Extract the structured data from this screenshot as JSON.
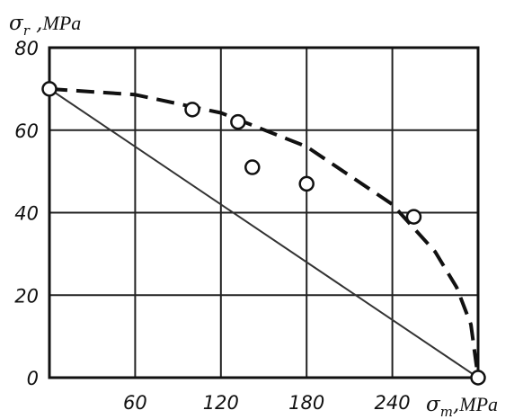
{
  "chart_data": {
    "type": "scatter",
    "title": "",
    "xlabel": {
      "symbol": "σ",
      "sub": "m",
      "sep": ",",
      "unit": "MPa"
    },
    "ylabel": {
      "symbol": "σ",
      "sub": "r",
      "sep": " ,",
      "unit": "MPa"
    },
    "xlim": [
      0,
      300
    ],
    "ylim": [
      0,
      80
    ],
    "x_grid": [
      60,
      120,
      180,
      240
    ],
    "y_grid": [
      20,
      40,
      60
    ],
    "x_tick_labels": [
      "60",
      "120",
      "180",
      "240"
    ],
    "y_tick_labels": [
      "0",
      "20",
      "40",
      "60",
      "80"
    ],
    "grid": true,
    "series": [
      {
        "style": "markers",
        "points": [
          {
            "x": 0,
            "y": 70
          },
          {
            "x": 100,
            "y": 65
          },
          {
            "x": 132,
            "y": 62
          },
          {
            "x": 142,
            "y": 51
          },
          {
            "x": 180,
            "y": 47
          },
          {
            "x": 255,
            "y": 39
          },
          {
            "x": 300,
            "y": 0
          }
        ]
      },
      {
        "style": "solid-line",
        "points": [
          {
            "x": 0,
            "y": 70
          },
          {
            "x": 300,
            "y": 0
          }
        ]
      },
      {
        "style": "dashed-curve",
        "points": [
          {
            "x": 0,
            "y": 70
          },
          {
            "x": 60,
            "y": 68.6
          },
          {
            "x": 120,
            "y": 64.2
          },
          {
            "x": 180,
            "y": 56
          },
          {
            "x": 240,
            "y": 42
          },
          {
            "x": 270,
            "y": 30.5
          },
          {
            "x": 285,
            "y": 21.9
          },
          {
            "x": 295,
            "y": 12.9
          },
          {
            "x": 300,
            "y": 0
          }
        ]
      }
    ]
  }
}
